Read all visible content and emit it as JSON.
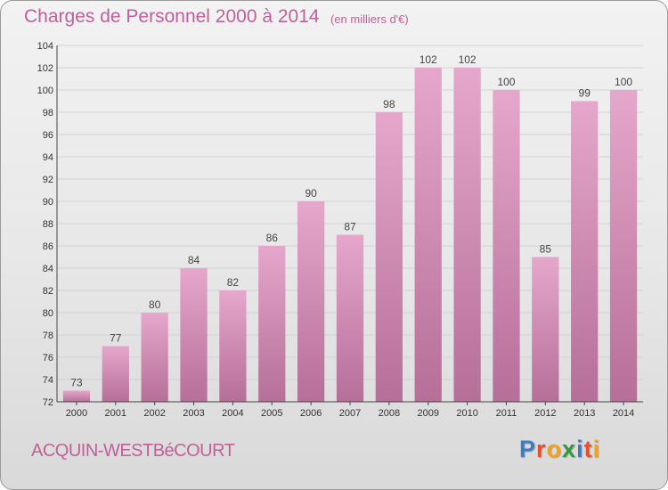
{
  "header": {
    "title": "Charges de Personnel 2000 à 2014",
    "subtitle": "(en milliers d'€)"
  },
  "footer": {
    "commune": "ACQUIN-WESTBéCOURT"
  },
  "logo": {
    "letters": [
      "P",
      "r",
      "o",
      "x",
      "i",
      "t",
      "i"
    ],
    "colors": [
      "#3a7dc8",
      "#e8502a",
      "#f2a31b",
      "#2f9a3e",
      "#3a7dc8",
      "#e8502a",
      "#f2a31b"
    ]
  },
  "colors": {
    "bar_top": "#e6a7cc",
    "bar_bottom": "#b56f98",
    "text_accent": "#c0609a"
  },
  "chart_data": {
    "type": "bar",
    "title": "Charges de Personnel 2000 à 2014",
    "subtitle": "(en milliers d'€)",
    "categories": [
      "2000",
      "2001",
      "2002",
      "2003",
      "2004",
      "2005",
      "2006",
      "2007",
      "2008",
      "2009",
      "2010",
      "2011",
      "2012",
      "2013",
      "2014"
    ],
    "values": [
      73,
      77,
      80,
      84,
      82,
      86,
      90,
      87,
      98,
      102,
      102,
      100,
      85,
      99,
      100
    ],
    "ylim": [
      72,
      104
    ],
    "yticks": [
      72,
      74,
      76,
      78,
      80,
      82,
      84,
      86,
      88,
      90,
      92,
      94,
      96,
      98,
      100,
      102,
      104
    ],
    "grid": true,
    "data_labels": true
  }
}
